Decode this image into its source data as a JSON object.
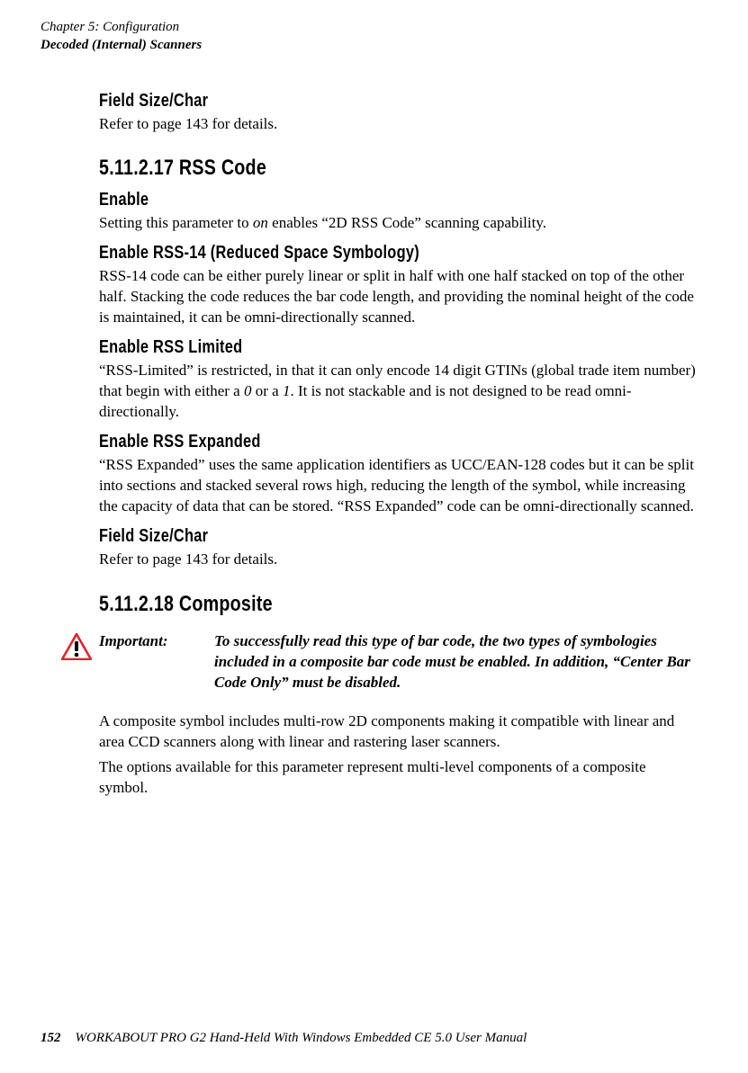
{
  "header": {
    "chapter_line": "Chapter 5: Configuration",
    "section_line": "Decoded (Internal) Scanners"
  },
  "sections": {
    "field_size_char_1": {
      "heading": "Field Size/Char",
      "body": "Refer to page 143 for details."
    },
    "rss_code": {
      "heading": "5.11.2.17  RSS Code"
    },
    "enable": {
      "heading": "Enable",
      "body_pre": "Setting this parameter to ",
      "body_em": "on",
      "body_post": " enables “2D RSS Code” scanning capability."
    },
    "enable_rss14": {
      "heading": "Enable RSS-14 (Reduced Space Symbology)",
      "body": "RSS-14 code can be either purely linear or split in half with one half stacked on top of the other half. Stacking the code reduces the bar code length, and providing the nominal height of the code is maintained, it can be omni-directionally scanned."
    },
    "enable_rss_limited": {
      "heading": "Enable RSS Limited",
      "body_pre": "“RSS-Limited” is restricted, in that it can only encode 14 digit GTINs (global trade item number) that begin with either a ",
      "body_em1": "0",
      "body_mid": " or a ",
      "body_em2": "1",
      "body_post": ". It is not stackable and is not designed to be read omni-directionally."
    },
    "enable_rss_expanded": {
      "heading": "Enable RSS Expanded",
      "body": "“RSS Expanded” uses the same application identifiers as UCC/EAN-128 codes but it can be split into sections and stacked several rows high, reducing the length of the symbol, while increasing the capacity of data that can be stored. “RSS Expanded” code can be omni-directionally scanned."
    },
    "field_size_char_2": {
      "heading": "Field Size/Char",
      "body": "Refer to page 143 for details."
    },
    "composite": {
      "heading": "5.11.2.18  Composite"
    },
    "important": {
      "label": "Important:",
      "body": "To successfully read this type of bar code, the two types of symbologies included in a composite bar code must be enabled. In addition, “Center Bar Code Only” must be disabled."
    },
    "composite_desc": {
      "p1": "A composite symbol includes multi-row 2D components making it compatible with linear and area CCD scanners along with linear and rastering laser scanners.",
      "p2": "The options available for this parameter represent multi-level components of a composite symbol."
    }
  },
  "footer": {
    "page_number": "152",
    "manual_title": "WORKABOUT PRO G2 Hand-Held With Windows Embedded CE 5.0 User Manual"
  },
  "colors": {
    "text": "#000000",
    "background": "#ffffff",
    "warning_red": "#ed1c24"
  }
}
